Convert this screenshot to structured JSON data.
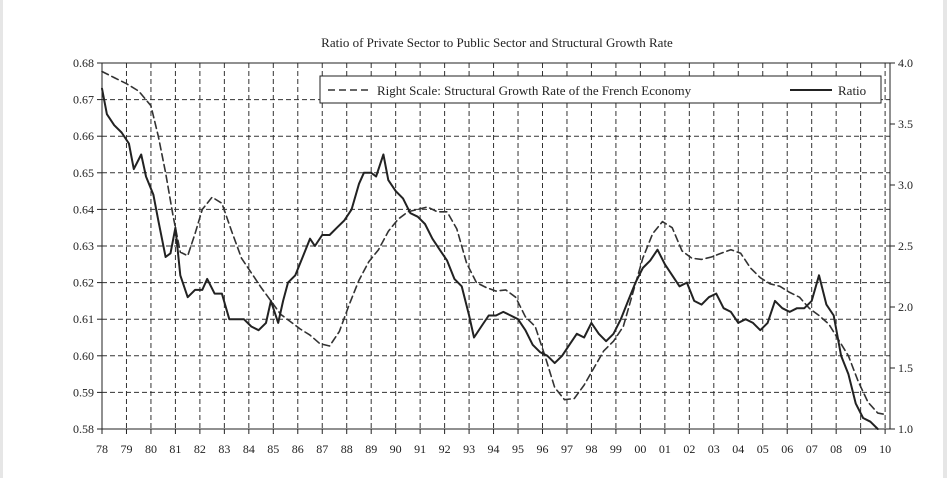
{
  "chart_data": {
    "type": "line",
    "title": "Ratio of Private Sector to Public Sector and Structural Growth Rate",
    "x_ticks": [
      "78",
      "79",
      "80",
      "81",
      "82",
      "83",
      "84",
      "85",
      "86",
      "87",
      "88",
      "89",
      "90",
      "91",
      "92",
      "93",
      "94",
      "95",
      "96",
      "97",
      "98",
      "99",
      "00",
      "01",
      "02",
      "03",
      "04",
      "05",
      "06",
      "07",
      "08",
      "09",
      "10"
    ],
    "x_range": [
      1978,
      2010.2
    ],
    "y_left": {
      "range": [
        0.58,
        0.68
      ],
      "ticks": [
        0.58,
        0.59,
        0.6,
        0.61,
        0.62,
        0.63,
        0.64,
        0.65,
        0.66,
        0.67,
        0.68
      ],
      "tick_labels": [
        "0.58",
        "0.59",
        "0.60",
        "0.61",
        "0.62",
        "0.63",
        "0.64",
        "0.65",
        "0.66",
        "0.67",
        "0.68"
      ]
    },
    "y_right": {
      "range": [
        1.0,
        4.0
      ],
      "ticks": [
        1.0,
        1.5,
        2.0,
        2.5,
        3.0,
        3.5,
        4.0
      ],
      "tick_labels": [
        "1.0",
        "1.5",
        "2.0",
        "2.5",
        "3.0",
        "3.5",
        "4.0"
      ]
    },
    "grid": true,
    "legend_position": "top-right",
    "series": [
      {
        "name": "Right Scale: Structural Growth Rate of the French Economy",
        "style": "dashed",
        "axis": "right",
        "points": [
          [
            1978.0,
            3.93
          ],
          [
            1978.5,
            3.88
          ],
          [
            1979.0,
            3.83
          ],
          [
            1979.5,
            3.77
          ],
          [
            1980.0,
            3.65
          ],
          [
            1980.3,
            3.4
          ],
          [
            1980.6,
            3.1
          ],
          [
            1980.9,
            2.75
          ],
          [
            1981.2,
            2.45
          ],
          [
            1981.5,
            2.42
          ],
          [
            1981.8,
            2.6
          ],
          [
            1982.1,
            2.8
          ],
          [
            1982.5,
            2.9
          ],
          [
            1982.9,
            2.85
          ],
          [
            1983.3,
            2.62
          ],
          [
            1983.7,
            2.4
          ],
          [
            1984.1,
            2.28
          ],
          [
            1984.5,
            2.16
          ],
          [
            1984.9,
            2.05
          ],
          [
            1985.3,
            1.94
          ],
          [
            1985.7,
            1.88
          ],
          [
            1986.1,
            1.82
          ],
          [
            1986.5,
            1.77
          ],
          [
            1986.9,
            1.7
          ],
          [
            1987.3,
            1.68
          ],
          [
            1987.7,
            1.8
          ],
          [
            1988.1,
            2.02
          ],
          [
            1988.5,
            2.22
          ],
          [
            1988.9,
            2.37
          ],
          [
            1989.3,
            2.47
          ],
          [
            1989.7,
            2.62
          ],
          [
            1990.1,
            2.72
          ],
          [
            1990.5,
            2.78
          ],
          [
            1990.9,
            2.8
          ],
          [
            1991.3,
            2.82
          ],
          [
            1991.7,
            2.78
          ],
          [
            1992.1,
            2.78
          ],
          [
            1992.5,
            2.64
          ],
          [
            1992.9,
            2.36
          ],
          [
            1993.3,
            2.2
          ],
          [
            1993.7,
            2.16
          ],
          [
            1994.1,
            2.13
          ],
          [
            1994.5,
            2.14
          ],
          [
            1994.9,
            2.08
          ],
          [
            1995.3,
            1.92
          ],
          [
            1995.7,
            1.84
          ],
          [
            1996.1,
            1.6
          ],
          [
            1996.5,
            1.34
          ],
          [
            1996.9,
            1.24
          ],
          [
            1997.3,
            1.25
          ],
          [
            1997.7,
            1.36
          ],
          [
            1998.1,
            1.5
          ],
          [
            1998.5,
            1.64
          ],
          [
            1998.9,
            1.72
          ],
          [
            1999.3,
            1.84
          ],
          [
            1999.7,
            2.12
          ],
          [
            2000.1,
            2.4
          ],
          [
            2000.5,
            2.6
          ],
          [
            2000.9,
            2.7
          ],
          [
            2001.3,
            2.65
          ],
          [
            2001.7,
            2.46
          ],
          [
            2002.1,
            2.4
          ],
          [
            2002.5,
            2.39
          ],
          [
            2002.9,
            2.41
          ],
          [
            2003.3,
            2.44
          ],
          [
            2003.7,
            2.47
          ],
          [
            2004.1,
            2.44
          ],
          [
            2004.5,
            2.32
          ],
          [
            2004.9,
            2.24
          ],
          [
            2005.3,
            2.19
          ],
          [
            2005.7,
            2.17
          ],
          [
            2006.1,
            2.12
          ],
          [
            2006.5,
            2.08
          ],
          [
            2006.9,
            1.99
          ],
          [
            2007.3,
            1.93
          ],
          [
            2007.7,
            1.86
          ],
          [
            2008.1,
            1.73
          ],
          [
            2008.5,
            1.6
          ],
          [
            2008.9,
            1.39
          ],
          [
            2009.3,
            1.22
          ],
          [
            2009.7,
            1.13
          ],
          [
            2010.0,
            1.12
          ]
        ]
      },
      {
        "name": "Ratio",
        "style": "solid",
        "axis": "left",
        "points": [
          [
            1978.0,
            0.673
          ],
          [
            1978.2,
            0.666
          ],
          [
            1978.5,
            0.663
          ],
          [
            1978.8,
            0.661
          ],
          [
            1979.1,
            0.658
          ],
          [
            1979.3,
            0.651
          ],
          [
            1979.6,
            0.655
          ],
          [
            1979.8,
            0.649
          ],
          [
            1980.1,
            0.644
          ],
          [
            1980.3,
            0.637
          ],
          [
            1980.6,
            0.627
          ],
          [
            1980.8,
            0.628
          ],
          [
            1981.0,
            0.635
          ],
          [
            1981.2,
            0.622
          ],
          [
            1981.5,
            0.616
          ],
          [
            1981.8,
            0.618
          ],
          [
            1982.1,
            0.618
          ],
          [
            1982.3,
            0.621
          ],
          [
            1982.6,
            0.617
          ],
          [
            1982.9,
            0.617
          ],
          [
            1983.2,
            0.61
          ],
          [
            1983.5,
            0.61
          ],
          [
            1983.8,
            0.61
          ],
          [
            1984.1,
            0.608
          ],
          [
            1984.4,
            0.607
          ],
          [
            1984.7,
            0.609
          ],
          [
            1984.9,
            0.615
          ],
          [
            1985.2,
            0.609
          ],
          [
            1985.4,
            0.615
          ],
          [
            1985.6,
            0.62
          ],
          [
            1985.9,
            0.622
          ],
          [
            1986.2,
            0.627
          ],
          [
            1986.5,
            0.632
          ],
          [
            1986.7,
            0.63
          ],
          [
            1987.0,
            0.633
          ],
          [
            1987.3,
            0.633
          ],
          [
            1987.6,
            0.635
          ],
          [
            1987.9,
            0.637
          ],
          [
            1988.2,
            0.64
          ],
          [
            1988.5,
            0.647
          ],
          [
            1988.7,
            0.65
          ],
          [
            1989.0,
            0.65
          ],
          [
            1989.2,
            0.649
          ],
          [
            1989.5,
            0.655
          ],
          [
            1989.7,
            0.648
          ],
          [
            1990.0,
            0.645
          ],
          [
            1990.3,
            0.643
          ],
          [
            1990.6,
            0.639
          ],
          [
            1990.9,
            0.638
          ],
          [
            1991.2,
            0.636
          ],
          [
            1991.5,
            0.632
          ],
          [
            1991.8,
            0.629
          ],
          [
            1992.1,
            0.626
          ],
          [
            1992.4,
            0.621
          ],
          [
            1992.7,
            0.619
          ],
          [
            1993.0,
            0.611
          ],
          [
            1993.2,
            0.605
          ],
          [
            1993.5,
            0.608
          ],
          [
            1993.8,
            0.611
          ],
          [
            1994.1,
            0.611
          ],
          [
            1994.4,
            0.612
          ],
          [
            1994.7,
            0.611
          ],
          [
            1995.0,
            0.61
          ],
          [
            1995.3,
            0.607
          ],
          [
            1995.6,
            0.603
          ],
          [
            1995.9,
            0.601
          ],
          [
            1996.2,
            0.6
          ],
          [
            1996.5,
            0.598
          ],
          [
            1996.8,
            0.6
          ],
          [
            1997.1,
            0.603
          ],
          [
            1997.4,
            0.606
          ],
          [
            1997.7,
            0.605
          ],
          [
            1998.0,
            0.609
          ],
          [
            1998.3,
            0.606
          ],
          [
            1998.6,
            0.604
          ],
          [
            1998.9,
            0.606
          ],
          [
            1999.2,
            0.61
          ],
          [
            1999.5,
            0.615
          ],
          [
            1999.8,
            0.62
          ],
          [
            2000.1,
            0.624
          ],
          [
            2000.4,
            0.626
          ],
          [
            2000.7,
            0.629
          ],
          [
            2001.0,
            0.625
          ],
          [
            2001.3,
            0.622
          ],
          [
            2001.6,
            0.619
          ],
          [
            2001.9,
            0.62
          ],
          [
            2002.2,
            0.615
          ],
          [
            2002.5,
            0.614
          ],
          [
            2002.8,
            0.616
          ],
          [
            2003.1,
            0.617
          ],
          [
            2003.4,
            0.613
          ],
          [
            2003.7,
            0.612
          ],
          [
            2004.0,
            0.609
          ],
          [
            2004.3,
            0.61
          ],
          [
            2004.6,
            0.609
          ],
          [
            2004.9,
            0.607
          ],
          [
            2005.2,
            0.609
          ],
          [
            2005.5,
            0.615
          ],
          [
            2005.8,
            0.613
          ],
          [
            2006.1,
            0.612
          ],
          [
            2006.4,
            0.613
          ],
          [
            2006.7,
            0.613
          ],
          [
            2007.0,
            0.615
          ],
          [
            2007.3,
            0.622
          ],
          [
            2007.6,
            0.614
          ],
          [
            2007.9,
            0.611
          ],
          [
            2008.2,
            0.6
          ],
          [
            2008.5,
            0.595
          ],
          [
            2008.8,
            0.587
          ],
          [
            2009.1,
            0.583
          ],
          [
            2009.4,
            0.582
          ],
          [
            2009.7,
            0.58
          ]
        ]
      }
    ]
  }
}
